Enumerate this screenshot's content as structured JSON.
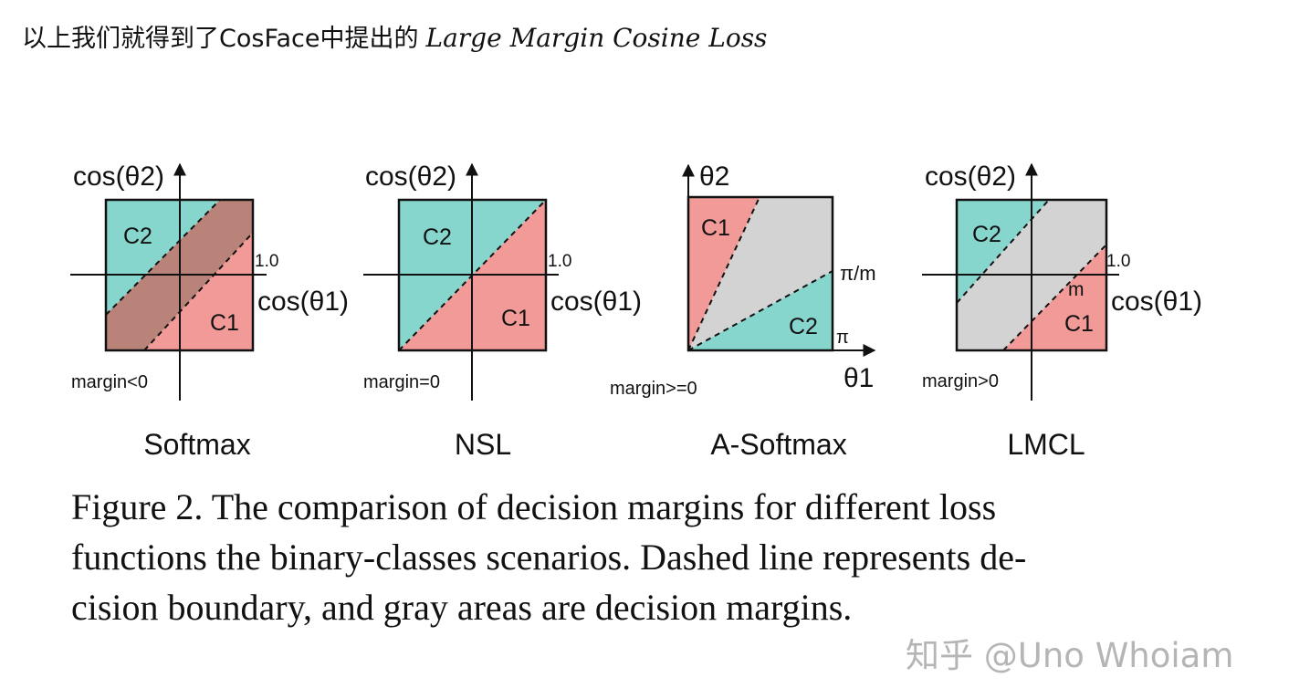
{
  "intro": {
    "text": "以上我们就得到了CosFace中提出的",
    "math": "Large Margin Cosine Loss"
  },
  "colors": {
    "teal": "#86d6ce",
    "salmon": "#f19a97",
    "brown": "#b98379",
    "gray": "#d3d3d3",
    "axis": "#111111"
  },
  "panels": [
    {
      "name": "Softmax",
      "y_axis": "cos(θ2)",
      "x_axis": "cos(θ1)",
      "tick": "1.0",
      "margin": "margin<0",
      "class_top": "C2",
      "class_bottom": "C1"
    },
    {
      "name": "NSL",
      "y_axis": "cos(θ2)",
      "x_axis": "cos(θ1)",
      "tick": "1.0",
      "margin": "margin=0",
      "class_top": "C2",
      "class_bottom": "C1"
    },
    {
      "name": "A-Softmax",
      "y_axis": "θ2",
      "x_axis": "θ1",
      "tick_upper": "π/m",
      "tick_lower": "π",
      "margin": "margin>=0",
      "class_top": "C1",
      "class_bottom": "C2"
    },
    {
      "name": "LMCL",
      "y_axis": "cos(θ2)",
      "x_axis": "cos(θ1)",
      "tick": "1.0",
      "margin_label": "m",
      "margin": "margin>0",
      "class_top": "C2",
      "class_bottom": "C1"
    }
  ],
  "caption": {
    "line1": "Figure 2. The comparison of decision margins for different loss",
    "line2": "functions the binary-classes scenarios. Dashed line represents de-",
    "line3": "cision boundary, and gray areas are decision margins."
  },
  "watermark": "知乎 @Uno Whoiam"
}
